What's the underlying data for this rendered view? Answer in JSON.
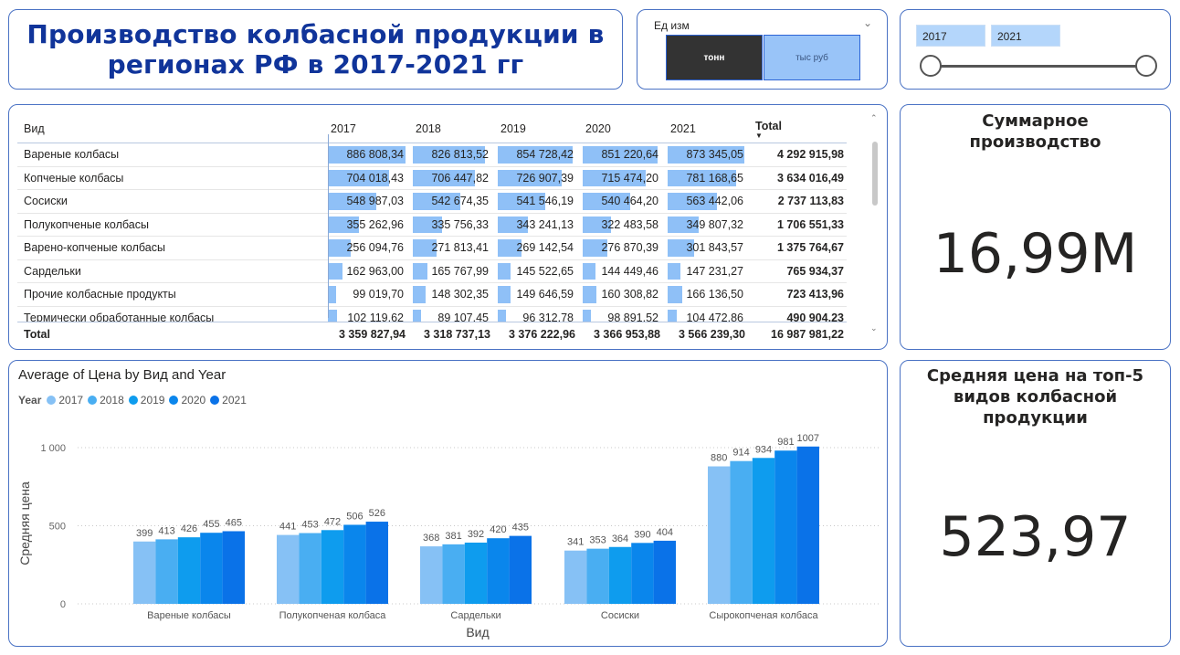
{
  "header": {
    "title": "Производство колбасной продукции в регионах РФ в 2017-2021 гг"
  },
  "unit_slicer": {
    "label": "Ед изм",
    "options": [
      "тонн",
      "тыс руб"
    ],
    "selected": "тонн"
  },
  "year_slider": {
    "from": "2017",
    "to": "2021"
  },
  "matrix": {
    "columns": [
      "Вид",
      "2017",
      "2018",
      "2019",
      "2020",
      "2021",
      "Total"
    ],
    "max_value": 886808.34,
    "rows": [
      {
        "name": "Вареные колбасы",
        "values": [
          "886 808,34",
          "826 813,52",
          "854 728,42",
          "851 220,64",
          "873 345,05"
        ],
        "nums": [
          886808.34,
          826813.52,
          854728.42,
          851220.64,
          873345.05
        ],
        "total": "4 292 915,98"
      },
      {
        "name": "Копченые колбасы",
        "values": [
          "704 018,43",
          "706 447,82",
          "726 907,39",
          "715 474,20",
          "781 168,65"
        ],
        "nums": [
          704018.43,
          706447.82,
          726907.39,
          715474.2,
          781168.65
        ],
        "total": "3 634 016,49"
      },
      {
        "name": "Сосиски",
        "values": [
          "548 987,03",
          "542 674,35",
          "541 546,19",
          "540 464,20",
          "563 442,06"
        ],
        "nums": [
          548987.03,
          542674.35,
          541546.19,
          540464.2,
          563442.06
        ],
        "total": "2 737 113,83"
      },
      {
        "name": "Полукопченые колбасы",
        "values": [
          "355 262,96",
          "335 756,33",
          "343 241,13",
          "322 483,58",
          "349 807,32"
        ],
        "nums": [
          355262.96,
          335756.33,
          343241.13,
          322483.58,
          349807.32
        ],
        "total": "1 706 551,33"
      },
      {
        "name": "Варено-копченые колбасы",
        "values": [
          "256 094,76",
          "271 813,41",
          "269 142,54",
          "276 870,39",
          "301 843,57"
        ],
        "nums": [
          256094.76,
          271813.41,
          269142.54,
          276870.39,
          301843.57
        ],
        "total": "1 375 764,67"
      },
      {
        "name": "Сардельки",
        "values": [
          "162 963,00",
          "165 767,99",
          "145 522,65",
          "144 449,46",
          "147 231,27"
        ],
        "nums": [
          162963.0,
          165767.99,
          145522.65,
          144449.46,
          147231.27
        ],
        "total": "765 934,37"
      },
      {
        "name": "Прочие колбасные продукты",
        "values": [
          "99 019,70",
          "148 302,35",
          "149 646,59",
          "160 308,82",
          "166 136,50"
        ],
        "nums": [
          99019.7,
          148302.35,
          149646.59,
          160308.82,
          166136.5
        ],
        "total": "723 413,96"
      },
      {
        "name": "Термически обработанные колбасы",
        "values": [
          "102 119,62",
          "89 107,45",
          "96 312,78",
          "98 891,52",
          "104 472,86"
        ],
        "nums": [
          102119.62,
          89107.45,
          96312.78,
          98891.52,
          104472.86
        ],
        "total": "490 904,23"
      }
    ],
    "total_row": {
      "label": "Total",
      "values": [
        "3 359 827,94",
        "3 318 737,13",
        "3 376 222,96",
        "3 366 953,88",
        "3 566 239,30"
      ],
      "total": "16 987 981,22"
    }
  },
  "kpi_total": {
    "title": "Суммарное производство",
    "value": "16,99M"
  },
  "kpi_price": {
    "title": "Средняя цена на топ-5 видов колбасной продукции",
    "value": "523,97"
  },
  "colors": {
    "border": "#4a72c4",
    "title": "#10349a",
    "bar": "#8fc0f7"
  },
  "chart_data": {
    "type": "bar",
    "title": "Average of Цена by Вид and Year",
    "xlabel": "Вид",
    "ylabel": "Средняя цена",
    "legend_title": "Year",
    "legend_position": "top-left",
    "ylim": [
      0,
      1000
    ],
    "yticks": [
      {
        "value": 0,
        "label": "0"
      },
      {
        "value": 500,
        "label": "500"
      },
      {
        "value": 1000,
        "label": "1 000"
      }
    ],
    "grid": true,
    "categories": [
      "Вареные колбасы",
      "Полукопченая колбаса",
      "Сардельки",
      "Сосиски",
      "Сырокопченая колбаса"
    ],
    "series": [
      {
        "name": "2017",
        "color": "#86c1f5",
        "values": [
          399,
          441,
          368,
          341,
          880
        ]
      },
      {
        "name": "2018",
        "color": "#49aef2",
        "values": [
          413,
          453,
          381,
          353,
          914
        ]
      },
      {
        "name": "2019",
        "color": "#0e9cee",
        "values": [
          426,
          472,
          392,
          364,
          934
        ]
      },
      {
        "name": "2020",
        "color": "#0a86ec",
        "values": [
          455,
          506,
          420,
          390,
          981
        ]
      },
      {
        "name": "2021",
        "color": "#0a72e8",
        "values": [
          465,
          526,
          435,
          404,
          1007
        ]
      }
    ]
  }
}
